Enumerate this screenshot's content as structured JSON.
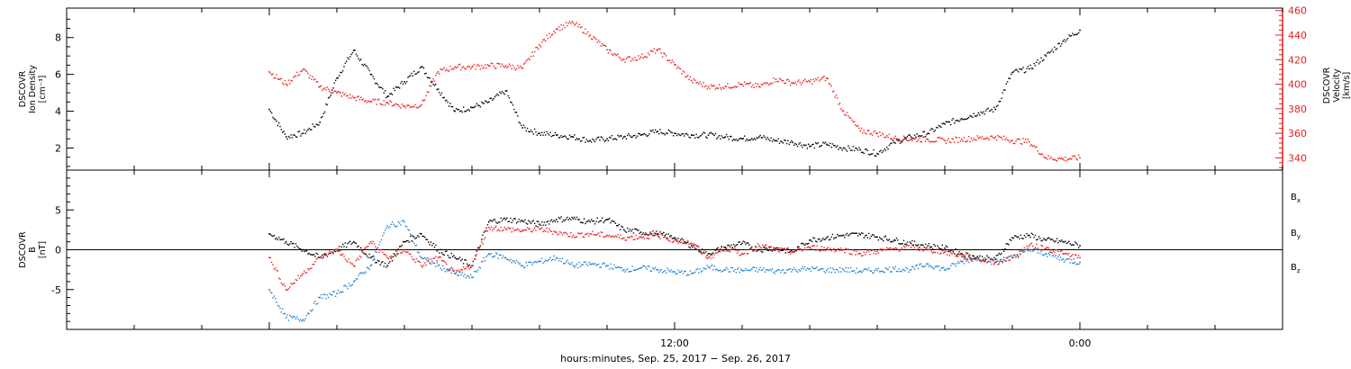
{
  "chart_data": [
    {
      "type": "scatter",
      "panel": "top",
      "y_left": {
        "label_lines": [
          "DSCOVR",
          "Ion Density",
          "[cm⁻³]"
        ],
        "ylim": [
          0.8,
          9.6
        ],
        "ticks": [
          2,
          4,
          6,
          8
        ],
        "color": "#000000"
      },
      "y_right": {
        "label_lines": [
          "DSCOVR",
          "Velocity",
          "[km/s]"
        ],
        "ylim": [
          330,
          462
        ],
        "ticks": [
          340,
          360,
          380,
          400,
          420,
          440,
          460
        ],
        "color": "#e8201c"
      },
      "series": [
        {
          "axis": "left",
          "color": "#000000",
          "x": [
            0,
            0.5,
            1,
            1.5,
            2,
            2.5,
            3,
            3.5,
            4,
            4.5,
            5,
            5.5,
            6,
            6.5,
            7,
            7.5,
            8,
            8.5,
            9,
            9.5,
            10,
            10.5,
            11,
            11.5,
            12,
            12.5,
            13,
            13.5,
            14,
            14.5,
            15,
            15.5,
            16,
            16.5,
            17,
            17.5,
            18,
            18.5,
            19,
            19.5,
            20,
            20.5,
            21,
            21.5,
            22,
            22.5,
            23,
            23.5,
            24
          ],
          "y": [
            4.1,
            2.6,
            2.8,
            3.4,
            5.8,
            7.3,
            6.0,
            4.8,
            5.6,
            6.4,
            5.2,
            4.0,
            4.2,
            4.5,
            5.1,
            3.1,
            2.8,
            2.7,
            2.6,
            2.4,
            2.5,
            2.6,
            2.7,
            2.9,
            2.8,
            2.7,
            2.7,
            2.6,
            2.5,
            2.6,
            2.4,
            2.3,
            2.1,
            2.2,
            2.0,
            1.9,
            1.7,
            2.3,
            2.6,
            2.8,
            3.3,
            3.6,
            3.9,
            4.1,
            6.1,
            6.3,
            7.0,
            7.8,
            8.4
          ]
        },
        {
          "axis": "right",
          "color": "#e8201c",
          "x": [
            0,
            0.5,
            1,
            1.5,
            2,
            2.5,
            3,
            3.5,
            4,
            4.5,
            5,
            5.5,
            6,
            6.5,
            7,
            7.5,
            8,
            8.5,
            9,
            9.5,
            10,
            10.5,
            11,
            11.5,
            12,
            12.5,
            13,
            13.5,
            14,
            14.5,
            15,
            15.5,
            16,
            16.5,
            17,
            17.5,
            18,
            18.5,
            19,
            19.5,
            20,
            20.5,
            21,
            21.5,
            22,
            22.5,
            23,
            23.5,
            24
          ],
          "y": [
            410,
            400,
            412,
            398,
            393,
            389,
            386,
            385,
            382,
            383,
            410,
            414,
            414,
            415,
            415,
            413,
            432,
            445,
            450,
            440,
            428,
            420,
            422,
            428,
            416,
            403,
            398,
            398,
            400,
            398,
            404,
            401,
            402,
            405,
            378,
            362,
            360,
            356,
            355,
            355,
            354,
            355,
            356,
            357,
            354,
            353,
            340,
            339,
            340
          ]
        }
      ]
    },
    {
      "type": "scatter",
      "panel": "bottom",
      "y_left": {
        "label_lines": [
          "DSCOVR",
          "B",
          "[nT]"
        ],
        "ylim": [
          -10,
          10
        ],
        "ticks": [
          -5,
          0,
          5
        ]
      },
      "zero_line": true,
      "series": [
        {
          "name": "Bx",
          "color": "#000000",
          "x": [
            0,
            0.5,
            1,
            1.5,
            2,
            2.5,
            3,
            3.5,
            4,
            4.5,
            5,
            5.5,
            6,
            6.5,
            7,
            7.5,
            8,
            8.5,
            9,
            9.5,
            10,
            10.5,
            11,
            11.5,
            12,
            12.5,
            13,
            13.5,
            14,
            14.5,
            15,
            15.5,
            16,
            16.5,
            17,
            17.5,
            18,
            18.5,
            19,
            19.5,
            20,
            20.5,
            21,
            21.5,
            22,
            22.5,
            23,
            23.5,
            24
          ],
          "y": [
            2,
            1,
            0,
            -1,
            0,
            1,
            -1,
            -2,
            1,
            2,
            0,
            -1,
            -2,
            3.5,
            3.8,
            3.6,
            3.2,
            3.8,
            3.9,
            3.5,
            3.8,
            2.5,
            2.2,
            2.0,
            1.5,
            0.5,
            -0.5,
            0.3,
            0.8,
            0,
            0.2,
            -0.3,
            1.2,
            1.5,
            1.8,
            1.9,
            1.6,
            1.2,
            0.8,
            0.5,
            0.2,
            -0.5,
            -1.0,
            -1.2,
            1.5,
            1.8,
            1.2,
            1.0,
            0.5
          ]
        },
        {
          "name": "By",
          "color": "#1f82d3",
          "x": [
            0,
            0.5,
            1,
            1.5,
            2,
            2.5,
            3,
            3.5,
            4,
            4.5,
            5,
            5.5,
            6,
            6.5,
            7,
            7.5,
            8,
            8.5,
            9,
            9.5,
            10,
            10.5,
            11,
            11.5,
            12,
            12.5,
            13,
            13.5,
            14,
            14.5,
            15,
            15.5,
            16,
            16.5,
            17,
            17.5,
            18,
            18.5,
            19,
            19.5,
            20,
            20.5,
            21,
            21.5,
            22,
            22.5,
            23,
            23.5,
            24
          ],
          "y": [
            -5,
            -8.5,
            -8.8,
            -6,
            -5.5,
            -4,
            -2,
            3,
            3.5,
            -1,
            -2,
            -3,
            -3.5,
            -0.5,
            -1,
            -2,
            -1.5,
            -1,
            -2,
            -1.8,
            -2.0,
            -2.5,
            -2.3,
            -2.5,
            -2.8,
            -3.0,
            -2.2,
            -2.5,
            -2.6,
            -2.5,
            -2.7,
            -2.5,
            -2.4,
            -2.6,
            -2.5,
            -2.7,
            -2.6,
            -2.4,
            -2.5,
            -1.8,
            -2.5,
            -1.5,
            -1.0,
            -1.5,
            -1.0,
            0.0,
            -0.5,
            -1.2,
            -1.6
          ]
        },
        {
          "name": "Bz",
          "color": "#e8201c",
          "x": [
            0,
            0.5,
            1,
            1.5,
            2,
            2.5,
            3,
            3.5,
            4,
            4.5,
            5,
            5.5,
            6,
            6.5,
            7,
            7.5,
            8,
            8.5,
            9,
            9.5,
            10,
            10.5,
            11,
            11.5,
            12,
            12.5,
            13,
            13.5,
            14,
            14.5,
            15,
            15.5,
            16,
            16.5,
            17,
            17.5,
            18,
            18.5,
            19,
            19.5,
            20,
            20.5,
            21,
            21.5,
            22,
            22.5,
            23,
            23.5,
            24
          ],
          "y": [
            -1,
            -5,
            -3,
            -1,
            0,
            -2,
            1,
            -1,
            0,
            -2,
            -1,
            -3,
            -2,
            2.8,
            2.6,
            2.4,
            2.6,
            2.2,
            1.8,
            2.0,
            1.8,
            1.5,
            1.6,
            1.8,
            1.2,
            0.8,
            -1.0,
            0.2,
            -0.5,
            0.5,
            0.0,
            -0.3,
            0.3,
            0.1,
            0.0,
            -0.5,
            -0.2,
            0.1,
            0.3,
            0.0,
            -0.3,
            -0.8,
            -1.2,
            -1.6,
            -1.0,
            0.5,
            0.2,
            -0.5,
            -1.0
          ]
        }
      ],
      "legend": {
        "placement": "right",
        "entries": [
          {
            "label": "B",
            "sub": "x",
            "color": "#000000"
          },
          {
            "label": "B",
            "sub": "y",
            "color": "#1f82d3"
          },
          {
            "label": "B",
            "sub": "z",
            "color": "#e8201c"
          }
        ]
      }
    }
  ],
  "x_axis": {
    "range_hours": [
      -6,
      30
    ],
    "tick_labels": [
      {
        "hours": 12,
        "label": "12:00"
      },
      {
        "hours": 24,
        "label": "0:00"
      }
    ],
    "label": "hours:minutes, Sep. 25, 2017 − Sep. 26, 2017"
  }
}
